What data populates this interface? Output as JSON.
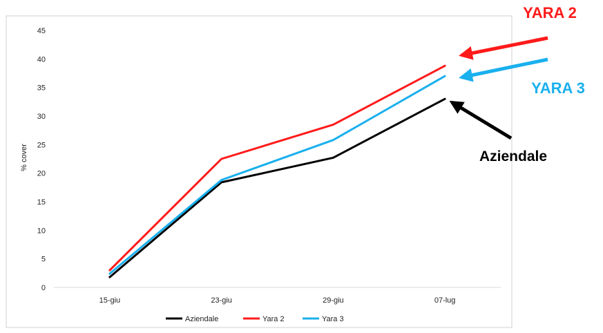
{
  "chart_data": {
    "type": "line",
    "categories": [
      "15-giu",
      "23-giu",
      "29-giu",
      "07-lug"
    ],
    "ylabel": "% cover",
    "xlabel": "",
    "ylim": [
      0,
      45
    ],
    "yticks": [
      0,
      5,
      10,
      15,
      20,
      25,
      30,
      35,
      40,
      45
    ],
    "grid": false,
    "legend_position": "bottom",
    "series": [
      {
        "name": "Aziendale",
        "color": "#000000",
        "values": [
          1.8,
          18.4,
          22.7,
          33.0
        ]
      },
      {
        "name": "Yara 2",
        "color": "#ff1a1a",
        "values": [
          3.0,
          22.5,
          28.5,
          38.8
        ]
      },
      {
        "name": "Yara 3",
        "color": "#1ab0ee",
        "values": [
          2.4,
          18.8,
          25.8,
          37.0
        ]
      }
    ],
    "annotations": [
      {
        "text": "YARA 2",
        "color": "#ff1a1a",
        "series": "Yara 2"
      },
      {
        "text": "YARA 3",
        "color": "#1ab0ee",
        "series": "Yara 3"
      },
      {
        "text": "Aziendale",
        "color": "#000000",
        "series": "Aziendale"
      }
    ]
  }
}
